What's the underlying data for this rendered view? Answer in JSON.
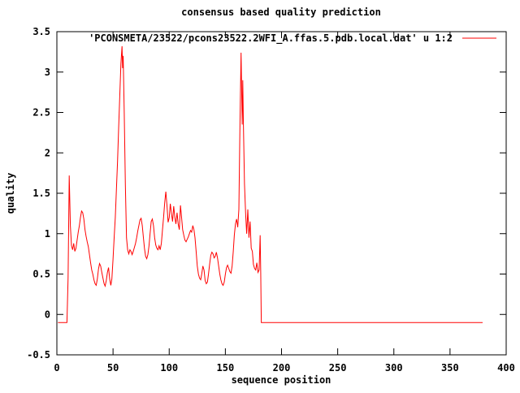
{
  "title": "consensus based quality prediction",
  "legend": {
    "label": "'PCONSMETA/23522/pcons23522.2WFI_A.ffas.5.pdb.local.dat' u 1:2",
    "sample_color": "#ff0000"
  },
  "colors": {
    "line": "#ff0000",
    "axis": "#000000",
    "background": "#ffffff"
  },
  "chart_data": {
    "type": "line",
    "title": "consensus based quality prediction",
    "xlabel": "sequence position",
    "ylabel": "quality",
    "xlim": [
      0,
      400
    ],
    "ylim": [
      -0.5,
      3.5
    ],
    "x_ticks": [
      0,
      50,
      100,
      150,
      200,
      250,
      300,
      350,
      400
    ],
    "y_ticks": [
      -0.5,
      0,
      0.5,
      1,
      1.5,
      2,
      2.5,
      3,
      3.5
    ],
    "grid": false,
    "legend_position": "top-right-inside",
    "series": [
      {
        "name": "'PCONSMETA/23522/pcons23522.2WFI_A.ffas.5.pdb.local.dat' u 1:2",
        "color": "#ff0000",
        "points": [
          [
            1,
            -0.1
          ],
          [
            9,
            -0.1
          ],
          [
            10,
            0.45
          ],
          [
            11,
            1.72
          ],
          [
            12,
            1.1
          ],
          [
            13,
            0.85
          ],
          [
            14,
            0.8
          ],
          [
            15,
            0.88
          ],
          [
            16,
            0.78
          ],
          [
            17,
            0.82
          ],
          [
            18,
            0.92
          ],
          [
            19,
            1.02
          ],
          [
            20,
            1.1
          ],
          [
            21,
            1.2
          ],
          [
            22,
            1.28
          ],
          [
            23,
            1.26
          ],
          [
            24,
            1.18
          ],
          [
            25,
            1.05
          ],
          [
            26,
            0.97
          ],
          [
            27,
            0.9
          ],
          [
            28,
            0.84
          ],
          [
            29,
            0.74
          ],
          [
            30,
            0.64
          ],
          [
            31,
            0.55
          ],
          [
            32,
            0.5
          ],
          [
            33,
            0.43
          ],
          [
            34,
            0.38
          ],
          [
            35,
            0.36
          ],
          [
            36,
            0.44
          ],
          [
            37,
            0.56
          ],
          [
            38,
            0.63
          ],
          [
            39,
            0.6
          ],
          [
            40,
            0.52
          ],
          [
            41,
            0.45
          ],
          [
            42,
            0.38
          ],
          [
            43,
            0.35
          ],
          [
            44,
            0.42
          ],
          [
            45,
            0.52
          ],
          [
            46,
            0.58
          ],
          [
            47,
            0.44
          ],
          [
            48,
            0.36
          ],
          [
            49,
            0.44
          ],
          [
            50,
            0.68
          ],
          [
            51,
            0.95
          ],
          [
            52,
            1.2
          ],
          [
            53,
            1.55
          ],
          [
            54,
            1.9
          ],
          [
            55,
            2.3
          ],
          [
            56,
            2.7
          ],
          [
            57,
            3.1
          ],
          [
            58,
            3.32
          ],
          [
            58.5,
            3.05
          ],
          [
            59,
            3.2
          ],
          [
            60,
            2.5
          ],
          [
            61,
            1.6
          ],
          [
            62,
            0.95
          ],
          [
            63,
            0.8
          ],
          [
            64,
            0.75
          ],
          [
            65,
            0.8
          ],
          [
            66,
            0.78
          ],
          [
            67,
            0.74
          ],
          [
            68,
            0.78
          ],
          [
            69,
            0.83
          ],
          [
            70,
            0.88
          ],
          [
            71,
            0.95
          ],
          [
            72,
            1.03
          ],
          [
            73,
            1.1
          ],
          [
            74,
            1.17
          ],
          [
            75,
            1.19
          ],
          [
            76,
            1.1
          ],
          [
            77,
            0.95
          ],
          [
            78,
            0.82
          ],
          [
            79,
            0.72
          ],
          [
            80,
            0.69
          ],
          [
            81,
            0.74
          ],
          [
            82,
            0.85
          ],
          [
            83,
            1.0
          ],
          [
            84,
            1.15
          ],
          [
            85,
            1.18
          ],
          [
            86,
            1.1
          ],
          [
            87,
            0.95
          ],
          [
            88,
            0.86
          ],
          [
            89,
            0.82
          ],
          [
            90,
            0.8
          ],
          [
            91,
            0.85
          ],
          [
            92,
            0.8
          ],
          [
            93,
            0.88
          ],
          [
            94,
            1.05
          ],
          [
            95,
            1.2
          ],
          [
            96,
            1.38
          ],
          [
            97,
            1.52
          ],
          [
            98,
            1.35
          ],
          [
            99,
            1.14
          ],
          [
            100,
            1.2
          ],
          [
            101,
            1.37
          ],
          [
            102,
            1.25
          ],
          [
            103,
            1.15
          ],
          [
            104,
            1.34
          ],
          [
            105,
            1.2
          ],
          [
            106,
            1.12
          ],
          [
            107,
            1.26
          ],
          [
            108,
            1.12
          ],
          [
            109,
            1.05
          ],
          [
            110,
            1.35
          ],
          [
            111,
            1.2
          ],
          [
            112,
            1.05
          ],
          [
            113,
            0.98
          ],
          [
            114,
            0.92
          ],
          [
            115,
            0.9
          ],
          [
            116,
            0.93
          ],
          [
            117,
            0.96
          ],
          [
            118,
            1.0
          ],
          [
            119,
            1.04
          ],
          [
            120,
            1.02
          ],
          [
            121,
            1.1
          ],
          [
            122,
            1.05
          ],
          [
            123,
            0.95
          ],
          [
            124,
            0.78
          ],
          [
            125,
            0.6
          ],
          [
            126,
            0.5
          ],
          [
            127,
            0.45
          ],
          [
            128,
            0.43
          ],
          [
            129,
            0.5
          ],
          [
            130,
            0.6
          ],
          [
            131,
            0.55
          ],
          [
            132,
            0.42
          ],
          [
            133,
            0.38
          ],
          [
            134,
            0.4
          ],
          [
            135,
            0.5
          ],
          [
            136,
            0.62
          ],
          [
            137,
            0.73
          ],
          [
            138,
            0.77
          ],
          [
            139,
            0.75
          ],
          [
            140,
            0.7
          ],
          [
            141,
            0.72
          ],
          [
            142,
            0.77
          ],
          [
            143,
            0.7
          ],
          [
            144,
            0.6
          ],
          [
            145,
            0.5
          ],
          [
            146,
            0.43
          ],
          [
            147,
            0.38
          ],
          [
            148,
            0.36
          ],
          [
            149,
            0.4
          ],
          [
            150,
            0.5
          ],
          [
            151,
            0.58
          ],
          [
            152,
            0.61
          ],
          [
            153,
            0.57
          ],
          [
            154,
            0.53
          ],
          [
            155,
            0.51
          ],
          [
            156,
            0.6
          ],
          [
            157,
            0.78
          ],
          [
            158,
            0.98
          ],
          [
            159,
            1.12
          ],
          [
            160,
            1.18
          ],
          [
            161,
            1.08
          ],
          [
            162,
            1.3
          ],
          [
            163,
            2.32
          ],
          [
            164,
            3.24
          ],
          [
            165,
            2.35
          ],
          [
            165.5,
            2.9
          ],
          [
            166,
            2.4
          ],
          [
            167,
            1.62
          ],
          [
            168,
            1.25
          ],
          [
            169,
            1.0
          ],
          [
            170,
            1.3
          ],
          [
            171,
            0.95
          ],
          [
            172,
            1.15
          ],
          [
            173,
            0.82
          ],
          [
            174,
            0.78
          ],
          [
            175,
            0.62
          ],
          [
            176,
            0.57
          ],
          [
            177,
            0.55
          ],
          [
            178,
            0.64
          ],
          [
            179,
            0.52
          ],
          [
            180,
            0.55
          ],
          [
            181,
            0.98
          ],
          [
            181.5,
            0.52
          ],
          [
            182,
            -0.1
          ],
          [
            379,
            -0.1
          ]
        ]
      }
    ]
  }
}
